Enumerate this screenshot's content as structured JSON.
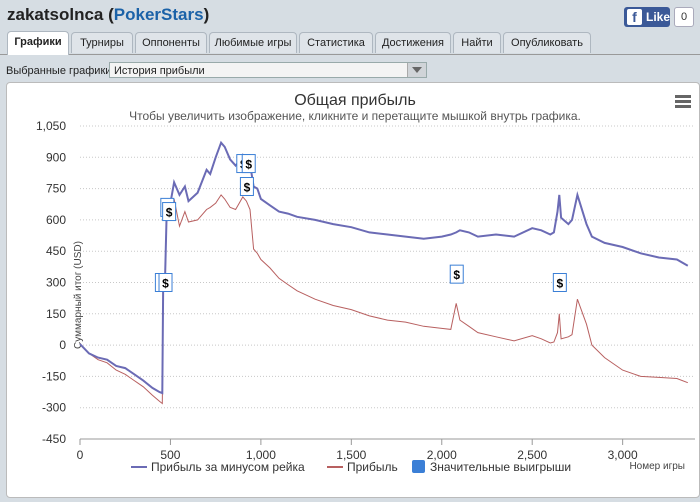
{
  "header": {
    "username": "zakatsolnca",
    "site": "PokerStars",
    "open_paren": " (",
    "close_paren": ")"
  },
  "facebook": {
    "icon": "facebook-f-icon",
    "like_label": "Like",
    "count": "0"
  },
  "tabs": [
    {
      "label": "Графики",
      "active": true
    },
    {
      "label": "Турниры"
    },
    {
      "label": "Оппоненты"
    },
    {
      "label": "Любимые игры"
    },
    {
      "label": "Статистика"
    },
    {
      "label": "Достижения"
    },
    {
      "label": "Найти"
    },
    {
      "label": "Опубликовать"
    }
  ],
  "selector": {
    "label": "Выбранные графики:",
    "value": "История прибыли"
  },
  "chart_data": {
    "type": "line",
    "title": "Общая прибыль",
    "subtitle": "Чтобы увеличить изображение, кликните и перетащите мышкой внутрь графика.",
    "xlabel": "Номер игры",
    "ylabel": "Суммарный итог (USD)",
    "xlim": [
      0,
      3400
    ],
    "ylim": [
      -450,
      1050
    ],
    "x_ticks": [
      "0",
      "500",
      "1,000",
      "1,500",
      "2,000",
      "2,500",
      "3,000"
    ],
    "y_ticks": [
      "1,050",
      "900",
      "750",
      "600",
      "450",
      "300",
      "150",
      "0",
      "-150",
      "-300",
      "-450"
    ],
    "grid": true,
    "legend_position": "bottom",
    "menu_icon": "hamburger-menu-icon",
    "series": [
      {
        "name": "Прибыль за минусом рейка",
        "color": "#6b6bb5",
        "points": [
          [
            0,
            5
          ],
          [
            50,
            -40
          ],
          [
            100,
            -60
          ],
          [
            150,
            -70
          ],
          [
            200,
            -100
          ],
          [
            250,
            -110
          ],
          [
            300,
            -140
          ],
          [
            350,
            -170
          ],
          [
            400,
            -205
          ],
          [
            440,
            -225
          ],
          [
            455,
            -230
          ],
          [
            460,
            300
          ],
          [
            470,
            310
          ],
          [
            480,
            660
          ],
          [
            500,
            680
          ],
          [
            520,
            780
          ],
          [
            550,
            720
          ],
          [
            580,
            760
          ],
          [
            600,
            690
          ],
          [
            650,
            730
          ],
          [
            700,
            840
          ],
          [
            720,
            820
          ],
          [
            750,
            900
          ],
          [
            780,
            970
          ],
          [
            800,
            950
          ],
          [
            830,
            890
          ],
          [
            860,
            860
          ],
          [
            880,
            880
          ],
          [
            900,
            910
          ],
          [
            920,
            880
          ],
          [
            940,
            870
          ],
          [
            960,
            760
          ],
          [
            980,
            750
          ],
          [
            1000,
            700
          ],
          [
            1050,
            670
          ],
          [
            1100,
            640
          ],
          [
            1150,
            630
          ],
          [
            1200,
            615
          ],
          [
            1300,
            600
          ],
          [
            1400,
            580
          ],
          [
            1500,
            565
          ],
          [
            1600,
            540
          ],
          [
            1700,
            530
          ],
          [
            1800,
            520
          ],
          [
            1900,
            510
          ],
          [
            2000,
            520
          ],
          [
            2050,
            530
          ],
          [
            2080,
            540
          ],
          [
            2100,
            550
          ],
          [
            2150,
            540
          ],
          [
            2200,
            520
          ],
          [
            2300,
            530
          ],
          [
            2400,
            520
          ],
          [
            2500,
            560
          ],
          [
            2550,
            550
          ],
          [
            2600,
            530
          ],
          [
            2620,
            540
          ],
          [
            2640,
            640
          ],
          [
            2650,
            720
          ],
          [
            2660,
            610
          ],
          [
            2700,
            580
          ],
          [
            2720,
            600
          ],
          [
            2750,
            720
          ],
          [
            2800,
            580
          ],
          [
            2830,
            520
          ],
          [
            2900,
            490
          ],
          [
            3000,
            470
          ],
          [
            3100,
            440
          ],
          [
            3200,
            420
          ],
          [
            3300,
            410
          ],
          [
            3360,
            380
          ]
        ]
      },
      {
        "name": "Прибыль",
        "color": "#b86060",
        "points": [
          [
            0,
            5
          ],
          [
            50,
            -40
          ],
          [
            100,
            -70
          ],
          [
            150,
            -85
          ],
          [
            200,
            -120
          ],
          [
            250,
            -140
          ],
          [
            300,
            -170
          ],
          [
            350,
            -200
          ],
          [
            400,
            -240
          ],
          [
            440,
            -270
          ],
          [
            455,
            -280
          ],
          [
            460,
            260
          ],
          [
            470,
            270
          ],
          [
            480,
            640
          ],
          [
            500,
            620
          ],
          [
            520,
            700
          ],
          [
            550,
            570
          ],
          [
            580,
            640
          ],
          [
            600,
            590
          ],
          [
            650,
            600
          ],
          [
            700,
            650
          ],
          [
            720,
            660
          ],
          [
            750,
            680
          ],
          [
            780,
            720
          ],
          [
            800,
            700
          ],
          [
            830,
            660
          ],
          [
            860,
            650
          ],
          [
            880,
            680
          ],
          [
            900,
            710
          ],
          [
            920,
            690
          ],
          [
            940,
            650
          ],
          [
            960,
            460
          ],
          [
            980,
            440
          ],
          [
            1000,
            410
          ],
          [
            1050,
            370
          ],
          [
            1100,
            320
          ],
          [
            1150,
            290
          ],
          [
            1200,
            260
          ],
          [
            1300,
            220
          ],
          [
            1400,
            190
          ],
          [
            1500,
            170
          ],
          [
            1600,
            140
          ],
          [
            1700,
            120
          ],
          [
            1800,
            110
          ],
          [
            1900,
            90
          ],
          [
            2000,
            80
          ],
          [
            2050,
            75
          ],
          [
            2080,
            200
          ],
          [
            2100,
            120
          ],
          [
            2150,
            90
          ],
          [
            2200,
            60
          ],
          [
            2300,
            40
          ],
          [
            2400,
            20
          ],
          [
            2500,
            45
          ],
          [
            2550,
            30
          ],
          [
            2600,
            10
          ],
          [
            2620,
            15
          ],
          [
            2640,
            60
          ],
          [
            2650,
            150
          ],
          [
            2660,
            30
          ],
          [
            2700,
            40
          ],
          [
            2720,
            50
          ],
          [
            2750,
            220
          ],
          [
            2800,
            100
          ],
          [
            2830,
            0
          ],
          [
            2900,
            -60
          ],
          [
            3000,
            -120
          ],
          [
            3100,
            -150
          ],
          [
            3200,
            -155
          ],
          [
            3300,
            -160
          ],
          [
            3360,
            -180
          ]
        ]
      }
    ],
    "markers": {
      "name": "Значительные выигрыши",
      "color": "#3b7fd6",
      "symbol": "$",
      "points": [
        [
          450,
          300
        ],
        [
          470,
          300
        ],
        [
          480,
          660
        ],
        [
          490,
          640
        ],
        [
          900,
          870
        ],
        [
          930,
          870
        ],
        [
          920,
          760
        ],
        [
          2080,
          340
        ],
        [
          2650,
          300
        ]
      ]
    }
  }
}
